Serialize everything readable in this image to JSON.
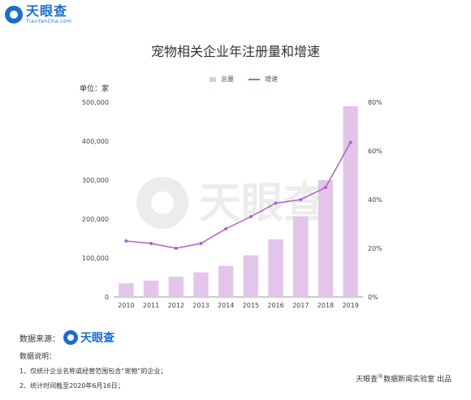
{
  "brand": {
    "name": "天眼查",
    "domain": "TianYanCha.com",
    "color": "#1a6fc9"
  },
  "page": {
    "title": "宠物相关企业年注册量和增速",
    "unit_label": "单位：家",
    "source_label": "数据来源：",
    "source_brand": "天眼查",
    "notes_title": "数据说明：",
    "notes": [
      "1、仅统计企业名称或经营范围包含“宠物”的企业；",
      "2、统计时间截至2020年6月16日；"
    ],
    "credit_brand": "天眼查",
    "credit_mark": "®",
    "credit_text": "数据新闻实验室 出品"
  },
  "chart_data": {
    "type": "bar",
    "categories": [
      "2010",
      "2011",
      "2012",
      "2013",
      "2014",
      "2015",
      "2016",
      "2017",
      "2018",
      "2019"
    ],
    "series": [
      {
        "name": "总量",
        "kind": "bar",
        "axis": "left",
        "color": "#e2c5e8",
        "values": [
          35000,
          42000,
          52000,
          63000,
          80000,
          107000,
          148000,
          207000,
          300000,
          490000
        ]
      },
      {
        "name": "增速",
        "kind": "line",
        "axis": "right",
        "color": "#b060c8",
        "values": [
          0.23,
          0.22,
          0.2,
          0.22,
          0.28,
          0.33,
          0.385,
          0.4,
          0.45,
          0.635
        ]
      }
    ],
    "ylim": [
      0,
      500000
    ],
    "yticks": [
      "0",
      "100,000",
      "200,000",
      "300,000",
      "400,000",
      "500,000"
    ],
    "y2lim": [
      0,
      0.8
    ],
    "y2ticks": [
      "0%",
      "20%",
      "40%",
      "60%",
      "80%"
    ],
    "legend_position": "top-center"
  }
}
